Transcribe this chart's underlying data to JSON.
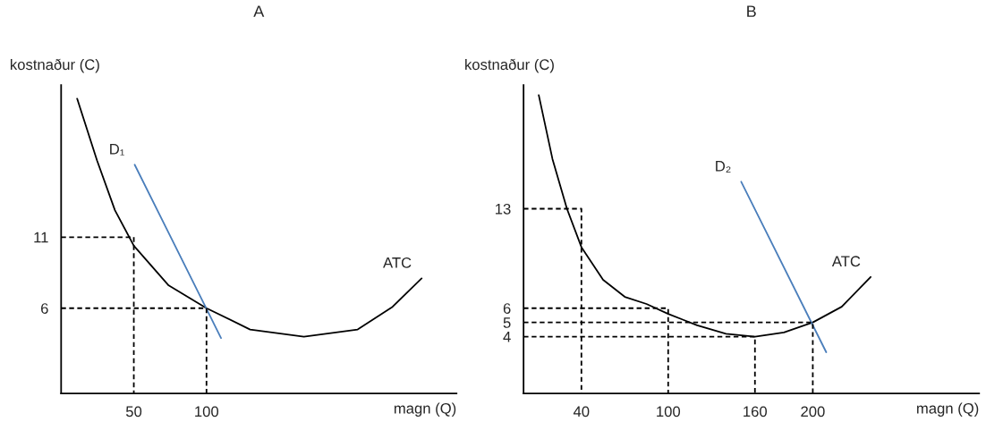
{
  "chart_data": [
    {
      "type": "line",
      "title": "A",
      "xlabel": "magn (Q)",
      "ylabel": "kostnaður (C)",
      "xlim": [
        0,
        272
      ],
      "ylim": [
        0,
        21.7
      ],
      "xticks": [
        50,
        100
      ],
      "yticks": [
        6,
        11
      ],
      "grid": false,
      "legend": false,
      "series": [
        {
          "color": "#000000",
          "line_style": "solid",
          "x": [
            11,
            24.7,
            37,
            50,
            74,
            100,
            130,
            167,
            204,
            228,
            248
          ],
          "values": [
            20.75,
            16.4,
            12.9,
            10.4,
            7.6,
            6,
            4.5,
            4.0,
            4.5,
            6.1,
            8.1
          ]
        },
        {
          "color": "#4a7ebb",
          "line_style": "solid",
          "x": [
            50.6,
            110
          ],
          "values": [
            16.1,
            3.9
          ]
        },
        {
          "color": "#000000",
          "line_style": "dashed",
          "x": [
            0,
            50,
            50
          ],
          "values": [
            11,
            11,
            0
          ]
        },
        {
          "color": "#000000",
          "line_style": "dashed",
          "x": [
            0,
            100,
            100
          ],
          "values": [
            6,
            6,
            0
          ]
        }
      ],
      "annotations": [
        {
          "text": "D₁",
          "x": 50.6,
          "y": 16.1
        },
        {
          "text": "ATC",
          "x": 248,
          "y": 8.1
        }
      ]
    },
    {
      "type": "line",
      "title": "B",
      "xlabel": "magn (Q)",
      "ylabel": "kostnaður (C)",
      "xlim": [
        0,
        315
      ],
      "ylim": [
        0,
        21.7
      ],
      "xticks": [
        40,
        100,
        160,
        200
      ],
      "yticks": [
        4,
        5,
        6,
        13
      ],
      "grid": false,
      "legend": false,
      "series": [
        {
          "color": "#000000",
          "line_style": "solid",
          "x": [
            10.5,
            20,
            30,
            40,
            55,
            70,
            85,
            100,
            120,
            140,
            160,
            180,
            200,
            220,
            240
          ],
          "values": [
            21,
            16.5,
            13,
            10.3,
            8,
            6.8,
            6.3,
            5.6,
            4.8,
            4.2,
            4.0,
            4.3,
            5.0,
            6.1,
            8.2
          ]
        },
        {
          "color": "#4a7ebb",
          "line_style": "solid",
          "x": [
            150.5,
            209.3
          ],
          "values": [
            14.9,
            2.9
          ]
        },
        {
          "color": "#000000",
          "line_style": "dashed",
          "x": [
            0,
            40,
            40
          ],
          "values": [
            13,
            13,
            0
          ]
        },
        {
          "color": "#000000",
          "line_style": "dashed",
          "x": [
            0,
            100,
            100
          ],
          "values": [
            6,
            6,
            0
          ]
        },
        {
          "color": "#000000",
          "line_style": "dashed",
          "x": [
            0,
            200,
            200
          ],
          "values": [
            5,
            5,
            0
          ]
        },
        {
          "color": "#000000",
          "line_style": "dashed",
          "x": [
            0,
            160,
            160
          ],
          "values": [
            4,
            4,
            0
          ]
        }
      ],
      "annotations": [
        {
          "text": "D₂",
          "x": 150.5,
          "y": 14.9
        },
        {
          "text": "ATC",
          "x": 240,
          "y": 8.2
        }
      ]
    }
  ]
}
